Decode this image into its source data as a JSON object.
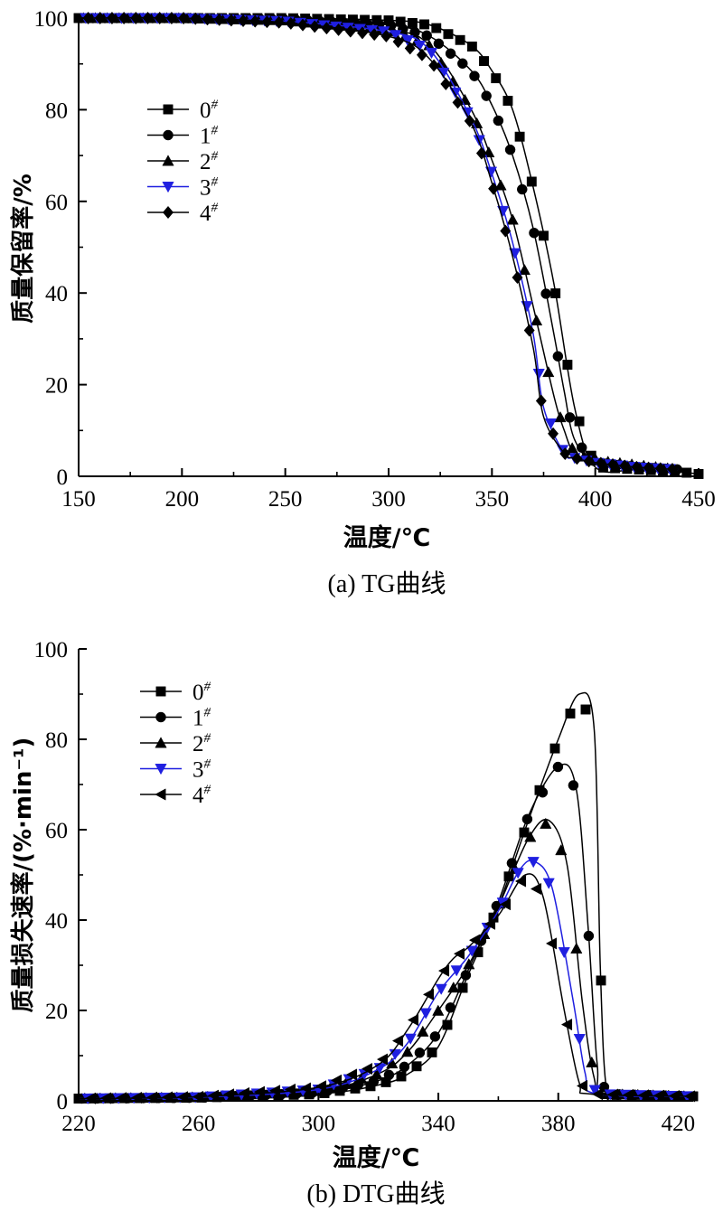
{
  "chart_data": [
    {
      "type": "line",
      "title": "(a) TG曲线",
      "xlabel": "温度/℃",
      "ylabel": "质量保留率/%",
      "xlim": [
        150,
        450
      ],
      "ylim": [
        0,
        100
      ],
      "xticks": [
        150,
        200,
        250,
        300,
        350,
        400,
        450
      ],
      "yticks": [
        0,
        20,
        40,
        60,
        80,
        100
      ],
      "legend_position": "top-left",
      "series": [
        {
          "name": "0",
          "sup": "#",
          "marker": "square",
          "color": "#000000",
          "x": [
            150,
            200,
            250,
            300,
            320,
            340,
            350,
            360,
            370,
            380,
            390,
            400,
            420,
            440,
            450
          ],
          "y": [
            100,
            100,
            100,
            99.5,
            98.5,
            94,
            88.5,
            80,
            63,
            42,
            15,
            2,
            1.5,
            1,
            0.5
          ]
        },
        {
          "name": "1",
          "sup": "#",
          "marker": "circle",
          "color": "#000000",
          "x": [
            150,
            200,
            250,
            300,
            320,
            340,
            350,
            360,
            370,
            380,
            385,
            390,
            400,
            420,
            440
          ],
          "y": [
            100,
            100,
            99.8,
            98.5,
            96,
            88.5,
            81,
            70,
            54,
            31,
            18.5,
            8,
            3,
            2,
            1.5
          ]
        },
        {
          "name": "2",
          "sup": "#",
          "marker": "triangle-up",
          "color": "#000000",
          "x": [
            150,
            200,
            250,
            300,
            320,
            340,
            350,
            360,
            370,
            380,
            385,
            390,
            400,
            420,
            440
          ],
          "y": [
            100,
            100,
            99.5,
            97.5,
            94,
            80,
            69,
            56,
            37,
            17.5,
            10,
            5,
            3.5,
            2.5,
            1.5
          ]
        },
        {
          "name": "3",
          "sup": "#",
          "marker": "triangle-down",
          "color": "#1f1fe0",
          "x": [
            150,
            200,
            250,
            300,
            320,
            340,
            350,
            360,
            370,
            375,
            385,
            390,
            400,
            420,
            440
          ],
          "y": [
            100,
            100,
            99.3,
            97,
            93,
            78,
            66,
            51,
            31,
            15,
            5,
            4,
            3,
            2,
            1.5
          ]
        },
        {
          "name": "4",
          "sup": "#",
          "marker": "diamond",
          "color": "#000000",
          "x": [
            150,
            200,
            250,
            300,
            320,
            340,
            350,
            360,
            370,
            375,
            385,
            390,
            400,
            420,
            440
          ],
          "y": [
            100,
            100,
            99,
            96,
            91,
            77,
            64,
            48,
            28,
            13,
            5,
            4,
            3,
            2,
            1.5
          ]
        }
      ]
    },
    {
      "type": "line",
      "title": "(b) DTG曲线",
      "xlabel": "温度/℃",
      "ylabel": "质量损失速率/(%·min⁻¹)",
      "xlim": [
        220,
        425
      ],
      "ylim": [
        0,
        100
      ],
      "xticks": [
        220,
        260,
        300,
        340,
        380,
        420
      ],
      "yticks": [
        0,
        20,
        40,
        60,
        80,
        100
      ],
      "legend_position": "top-left",
      "series": [
        {
          "name": "0",
          "sup": "#",
          "marker": "square",
          "color": "#000000",
          "x": [
            220,
            260,
            300,
            320,
            330,
            340,
            350,
            360,
            370,
            380,
            387,
            392,
            394,
            396,
            400,
            425
          ],
          "y": [
            0.5,
            0.7,
            1.5,
            3.5,
            6,
            12,
            28,
            43,
            62,
            80,
            90,
            82,
            30,
            3,
            1,
            1
          ]
        },
        {
          "name": "1",
          "sup": "#",
          "marker": "circle",
          "color": "#000000",
          "x": [
            220,
            260,
            300,
            320,
            330,
            340,
            350,
            360,
            370,
            380,
            386,
            390,
            393,
            396,
            425
          ],
          "y": [
            0.5,
            0.7,
            1.8,
            4.5,
            8,
            15,
            29,
            44,
            63,
            74,
            69,
            38,
            8,
            1.5,
            1
          ]
        },
        {
          "name": "2",
          "sup": "#",
          "marker": "triangle-up",
          "color": "#000000",
          "x": [
            220,
            260,
            300,
            320,
            330,
            340,
            350,
            360,
            370,
            377,
            383,
            388,
            392,
            396,
            425
          ],
          "y": [
            0.5,
            0.8,
            2.2,
            6,
            11,
            20,
            30,
            43,
            58,
            62,
            52,
            22,
            5,
            1.5,
            1
          ]
        },
        {
          "name": "3",
          "sup": "#",
          "marker": "triangle-down",
          "color": "#1f1fe0",
          "x": [
            220,
            260,
            300,
            320,
            330,
            340,
            350,
            360,
            367,
            372,
            378,
            385,
            389,
            393,
            425
          ],
          "y": [
            0.5,
            0.8,
            2.5,
            7,
            13,
            24,
            32,
            42,
            51,
            53,
            47,
            22,
            6,
            1.5,
            1
          ]
        },
        {
          "name": "4",
          "sup": "#",
          "marker": "triangle-left",
          "color": "#000000",
          "x": [
            220,
            260,
            300,
            320,
            330,
            340,
            345,
            350,
            360,
            369,
            375,
            382,
            387,
            391,
            425
          ],
          "y": [
            0.5,
            0.9,
            3,
            8,
            16,
            27,
            31.5,
            34,
            41,
            50,
            45,
            20,
            4,
            1.5,
            1
          ]
        }
      ]
    }
  ]
}
